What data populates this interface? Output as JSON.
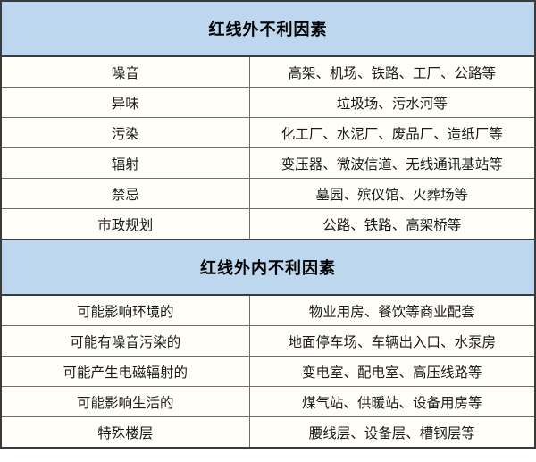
{
  "table": {
    "colors": {
      "header_bg": "#BDD7EE",
      "cell_bg": "#FFFEF8",
      "outer_border": "#3B3B3B",
      "inner_border": "#6E6E6E",
      "text": "#1A1A1A"
    },
    "sections": [
      {
        "header": "红线外不利因素",
        "rows": [
          {
            "label": "噪音",
            "value": "高架、机场、铁路、工厂、公路等"
          },
          {
            "label": "异味",
            "value": "垃圾场、污水河等"
          },
          {
            "label": "污染",
            "value": "化工厂、水泥厂、废品厂、造纸厂等"
          },
          {
            "label": "辐射",
            "value": "变压器、微波信道、无线通讯基站等"
          },
          {
            "label": "禁忌",
            "value": "墓园、殡仪馆、火葬场等"
          },
          {
            "label": "市政规划",
            "value": "公路、铁路、高架桥等"
          }
        ]
      },
      {
        "header": "红线外内不利因素",
        "rows": [
          {
            "label": "可能影响环境的",
            "value": "物业用房、餐饮等商业配套"
          },
          {
            "label": "可能有噪音污染的",
            "value": "地面停车场、车辆出入口、水泵房"
          },
          {
            "label": "可能产生电磁辐射的",
            "value": "变电室、配电室、高压线路等"
          },
          {
            "label": "可能影响生活的",
            "value": "煤气站、供暖站、设备用房等"
          },
          {
            "label": "特殊楼层",
            "value": "腰线层、设备层、槽钢层等"
          }
        ]
      }
    ]
  }
}
